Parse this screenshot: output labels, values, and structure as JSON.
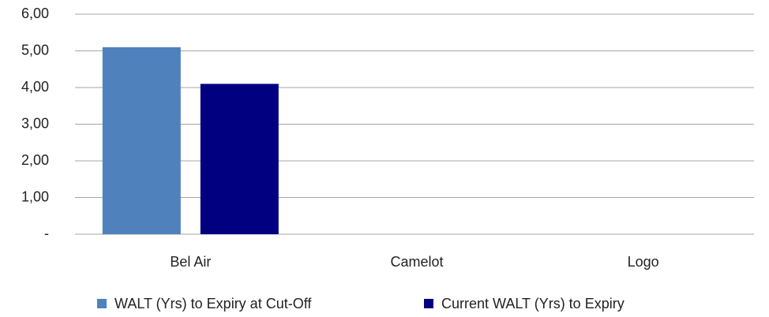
{
  "chart_data": {
    "type": "bar",
    "categories": [
      "Bel Air",
      "Camelot",
      "Logo"
    ],
    "series": [
      {
        "name": "WALT (Yrs) to Expiry at Cut-Off",
        "color": "#4f81bd",
        "values": [
          5.1,
          null,
          null
        ]
      },
      {
        "name": "Current WALT (Yrs) to Expiry",
        "color": "#000080",
        "values": [
          4.1,
          null,
          null
        ]
      }
    ],
    "ylim": [
      0,
      6
    ],
    "yticks": [
      {
        "value": 0,
        "label": "-"
      },
      {
        "value": 1,
        "label": "1,00"
      },
      {
        "value": 2,
        "label": "2,00"
      },
      {
        "value": 3,
        "label": "3,00"
      },
      {
        "value": 4,
        "label": "4,00"
      },
      {
        "value": 5,
        "label": "5,00"
      },
      {
        "value": 6,
        "label": "6,00"
      }
    ],
    "grid": true,
    "legend": "bottom"
  }
}
